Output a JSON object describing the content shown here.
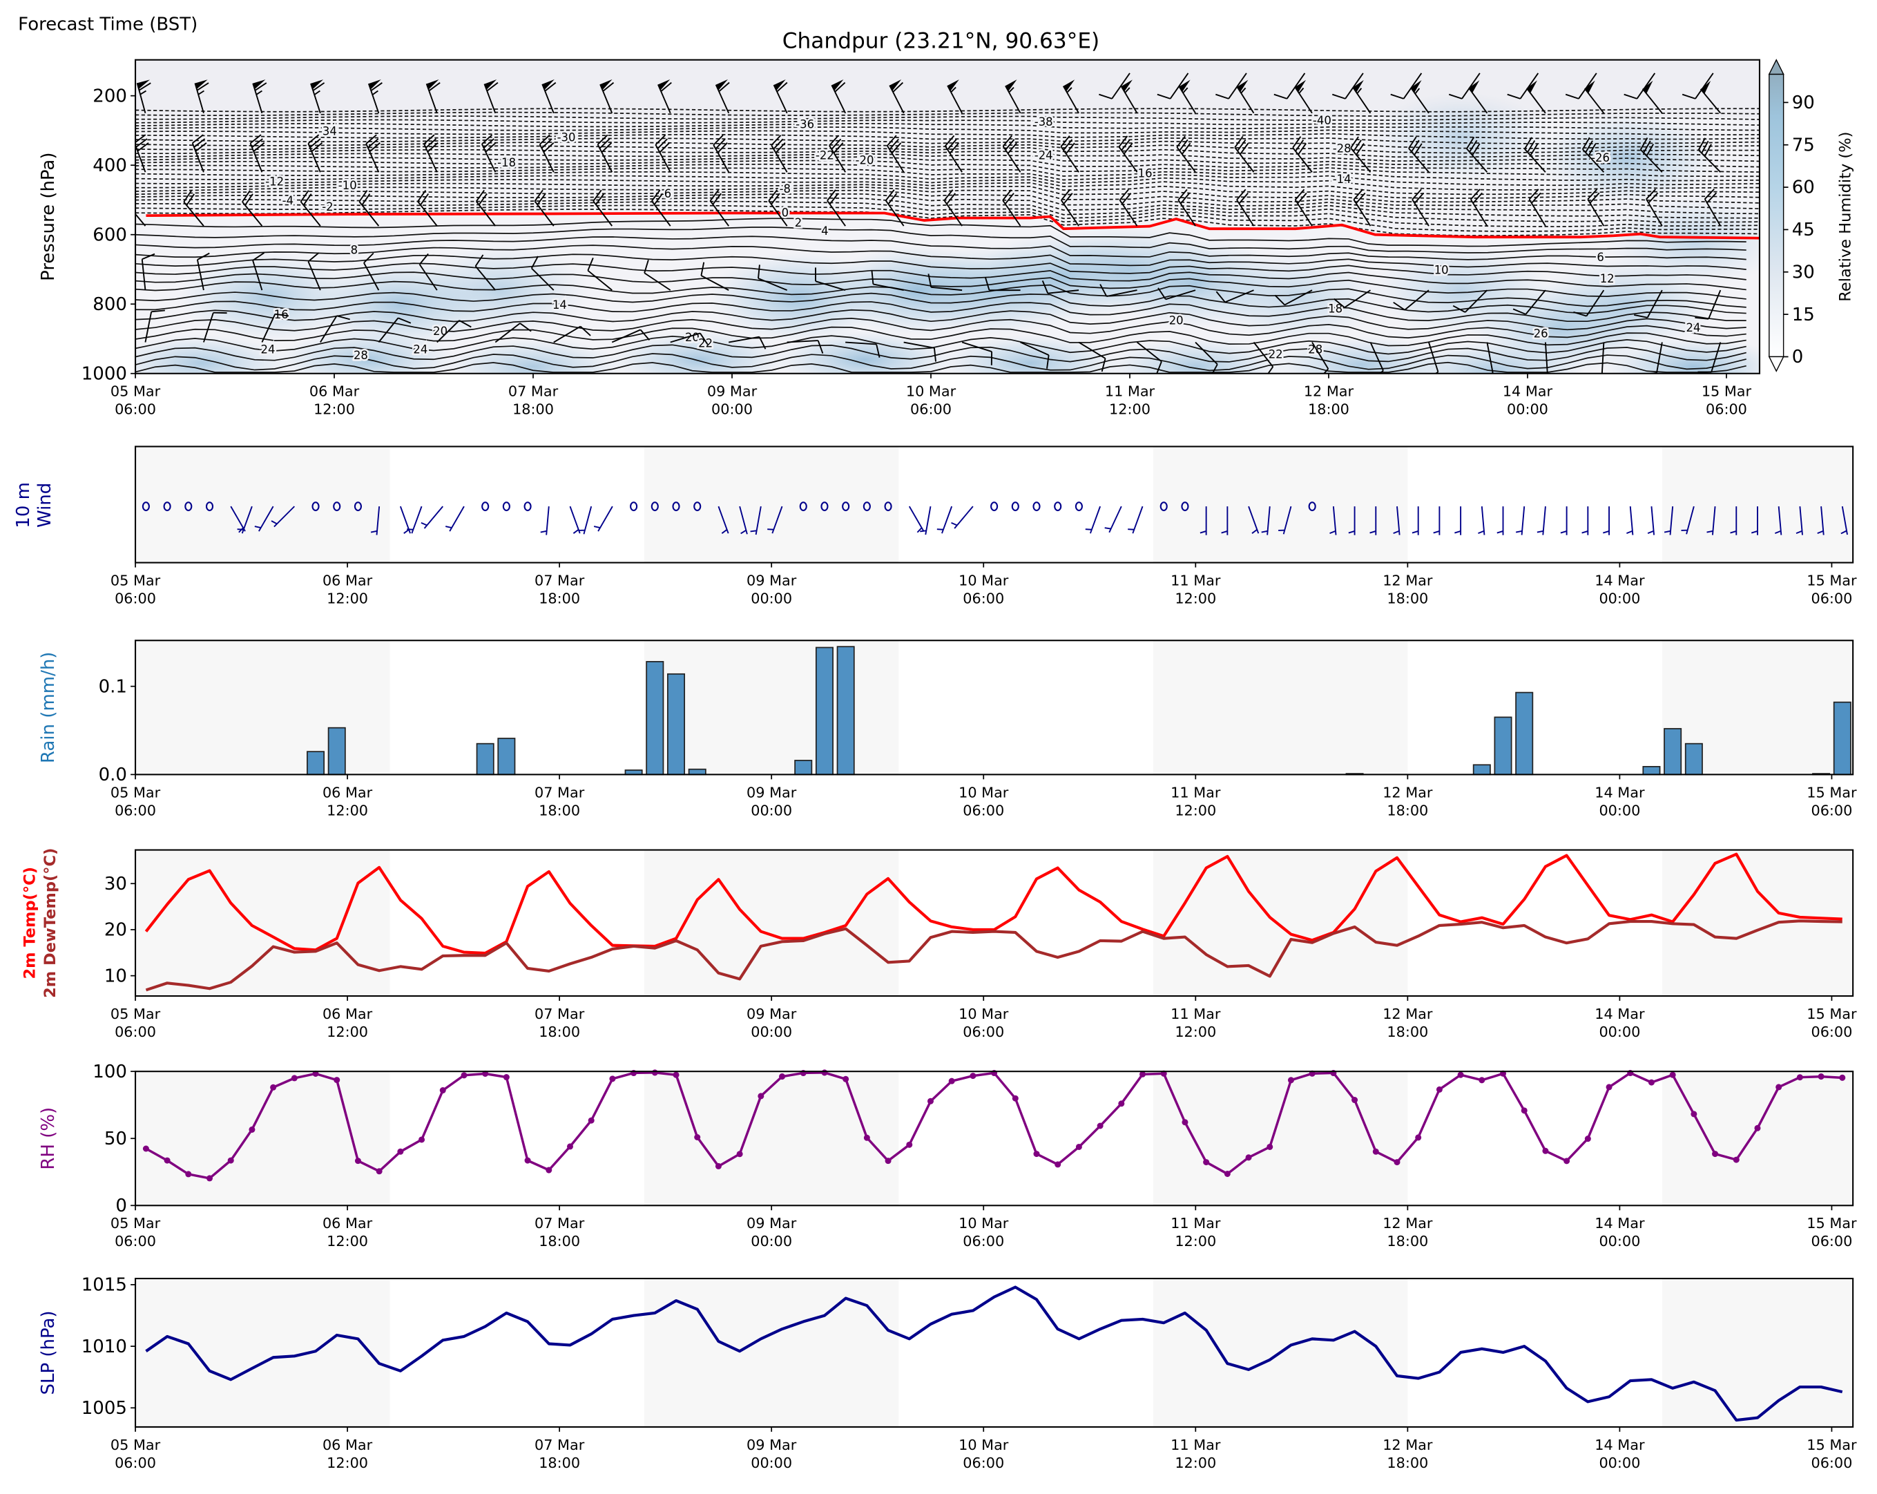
{
  "header": {
    "forecast_time_label": "Forecast Time (BST)",
    "title": "Chandpur (23.21°N, 90.63°E)"
  },
  "time_axis": {
    "first_point_hour": 1.5,
    "step_hours": 3,
    "ticks": [
      {
        "date": "05 Mar",
        "time": "06:00"
      },
      {
        "date": "06 Mar",
        "time": "12:00"
      },
      {
        "date": "07 Mar",
        "time": "18:00"
      },
      {
        "date": "09 Mar",
        "time": "00:00"
      },
      {
        "date": "10 Mar",
        "time": "06:00"
      },
      {
        "date": "11 Mar",
        "time": "12:00"
      },
      {
        "date": "12 Mar",
        "time": "18:00"
      },
      {
        "date": "14 Mar",
        "time": "00:00"
      },
      {
        "date": "15 Mar",
        "time": "06:00"
      }
    ],
    "tick_step_hours": 30,
    "shaded_bands_hours": [
      [
        0,
        36
      ],
      [
        72,
        108
      ],
      [
        144,
        180
      ],
      [
        216,
        243
      ]
    ]
  },
  "chart_data": [
    {
      "type": "contour",
      "name": "vertical-cross-section",
      "ylabel": "Pressure (hPa)",
      "ylim": [
        1000,
        100
      ],
      "xlim_hours": [
        0,
        245
      ],
      "yticks": [
        200,
        400,
        600,
        800,
        1000
      ],
      "ytick_labels": [
        "200",
        "400",
        "600",
        "800",
        "1000"
      ],
      "freezing_level": {
        "color": "#ff0000",
        "hours": [
          1.6,
          34,
          61,
          88,
          113,
          119,
          124,
          135,
          138,
          140,
          153,
          157,
          162,
          175,
          182,
          187,
          202,
          218,
          223,
          227,
          230,
          245
        ],
        "pressure": [
          545,
          541,
          540,
          538,
          538,
          559,
          552,
          552,
          548,
          583,
          576,
          555,
          583,
          583,
          572,
          600,
          607,
          607,
          603,
          598,
          607,
          610
        ]
      },
      "contour_labels": [
        {
          "value": "-34",
          "hour": 29,
          "pressure": 303
        },
        {
          "value": "-30",
          "hour": 65,
          "pressure": 321
        },
        {
          "value": "-18",
          "hour": 56,
          "pressure": 393
        },
        {
          "value": "-36",
          "hour": 101,
          "pressure": 283
        },
        {
          "value": "-22",
          "hour": 104,
          "pressure": 372
        },
        {
          "value": "-20",
          "hour": 110,
          "pressure": 386
        },
        {
          "value": "-38",
          "hour": 137,
          "pressure": 276
        },
        {
          "value": "-24",
          "hour": 137,
          "pressure": 372
        },
        {
          "value": "-40",
          "hour": 179,
          "pressure": 272
        },
        {
          "value": "-28",
          "hour": 182,
          "pressure": 352
        },
        {
          "value": "-26",
          "hour": 221,
          "pressure": 379
        },
        {
          "value": "-16",
          "hour": 152,
          "pressure": 424
        },
        {
          "value": "-14",
          "hour": 182,
          "pressure": 441
        },
        {
          "value": "-12",
          "hour": 21,
          "pressure": 448
        },
        {
          "value": "-10",
          "hour": 32,
          "pressure": 459
        },
        {
          "value": "-8",
          "hour": 98,
          "pressure": 469
        },
        {
          "value": "-6",
          "hour": 80,
          "pressure": 483
        },
        {
          "value": "-4",
          "hour": 23,
          "pressure": 503
        },
        {
          "value": "-2",
          "hour": 29,
          "pressure": 521
        },
        {
          "value": "0",
          "hour": 98,
          "pressure": 538
        },
        {
          "value": "2",
          "hour": 100,
          "pressure": 566
        },
        {
          "value": "4",
          "hour": 104,
          "pressure": 590
        },
        {
          "value": "8",
          "hour": 33,
          "pressure": 645
        },
        {
          "value": "6",
          "hour": 221,
          "pressure": 666
        },
        {
          "value": "10",
          "hour": 197,
          "pressure": 703
        },
        {
          "value": "12",
          "hour": 222,
          "pressure": 728
        },
        {
          "value": "14",
          "hour": 64,
          "pressure": 803
        },
        {
          "value": "16",
          "hour": 22,
          "pressure": 831
        },
        {
          "value": "18",
          "hour": 181,
          "pressure": 814
        },
        {
          "value": "20",
          "hour": 46,
          "pressure": 879
        },
        {
          "value": "20",
          "hour": 84,
          "pressure": 897
        },
        {
          "value": "20",
          "hour": 157,
          "pressure": 848
        },
        {
          "value": "22",
          "hour": 86,
          "pressure": 914
        },
        {
          "value": "22",
          "hour": 172,
          "pressure": 945
        },
        {
          "value": "24",
          "hour": 20,
          "pressure": 931
        },
        {
          "value": "24",
          "hour": 43,
          "pressure": 931
        },
        {
          "value": "24",
          "hour": 235,
          "pressure": 869
        },
        {
          "value": "26",
          "hour": 212,
          "pressure": 886
        },
        {
          "value": "28",
          "hour": 34,
          "pressure": 948
        },
        {
          "value": "28",
          "hour": 178,
          "pressure": 931
        }
      ],
      "rh_maxima": [
        [
          20,
          780,
          55
        ],
        [
          40,
          800,
          60
        ],
        [
          55,
          760,
          45
        ],
        [
          100,
          780,
          65
        ],
        [
          118,
          760,
          70
        ],
        [
          130,
          760,
          60
        ],
        [
          140,
          720,
          55
        ],
        [
          150,
          700,
          50
        ],
        [
          160,
          740,
          55
        ],
        [
          175,
          780,
          40
        ],
        [
          200,
          760,
          45
        ],
        [
          215,
          870,
          55
        ],
        [
          225,
          800,
          50
        ],
        [
          225,
          380,
          55
        ],
        [
          200,
          320,
          40
        ],
        [
          10,
          970,
          55
        ],
        [
          35,
          960,
          60
        ],
        [
          60,
          980,
          55
        ],
        [
          85,
          960,
          60
        ],
        [
          110,
          960,
          65
        ],
        [
          135,
          970,
          60
        ],
        [
          160,
          980,
          55
        ],
        [
          185,
          975,
          55
        ],
        [
          205,
          990,
          55
        ],
        [
          235,
          980,
          65
        ],
        [
          235,
          620,
          40
        ]
      ],
      "colorbar": {
        "label": "Relative Humidity (%)",
        "range": [
          0,
          100
        ],
        "ticks": [
          0,
          15,
          30,
          45,
          60,
          75,
          90
        ],
        "tick_labels": [
          "0",
          "15",
          "30",
          "45",
          "60",
          "75",
          "90"
        ]
      },
      "upper_wind": {
        "step_hours": 8.8,
        "levels": [
          {
            "pressure": 250,
            "from_hour": 1.5,
            "dir_start": 345,
            "dir_end": 320,
            "speed_start": 65,
            "speed_end": 50
          },
          {
            "pressure": 135,
            "from_hour": 150,
            "dir_start": 215,
            "dir_end": 215,
            "speed_start": 10,
            "speed_end": 10
          },
          {
            "pressure": 420,
            "from_hour": 1.5,
            "dir_start": 340,
            "dir_end": 315,
            "speed_start": 30,
            "speed_end": 30
          },
          {
            "pressure": 575,
            "from_hour": 1.5,
            "dir_start": 320,
            "dir_end": 330,
            "speed_start": 20,
            "speed_end": 20
          },
          {
            "pressure": 760,
            "from_hour": 1.5,
            "dir_start": 355,
            "dir_end": 200,
            "speed_start": 10,
            "speed_end": 10
          },
          {
            "pressure": 910,
            "from_hour": 1.5,
            "dir_start": 10,
            "dir_end": 200,
            "speed_start": 10,
            "speed_end": 10
          }
        ]
      }
    },
    {
      "type": "barbs",
      "name": "wind-10m",
      "ylabel_line1": "10 m",
      "ylabel_line2": "Wind",
      "color": "#00008b",
      "speed_kt": [
        0,
        0,
        0,
        0,
        5,
        5,
        5,
        5,
        0,
        0,
        0,
        5,
        5,
        5,
        5,
        5,
        0,
        0,
        0,
        5,
        5,
        5,
        5,
        0,
        0,
        0,
        0,
        5,
        5,
        5,
        5,
        0,
        0,
        0,
        0,
        0,
        5,
        5,
        5,
        5,
        0,
        0,
        0,
        0,
        0,
        5,
        5,
        5,
        0,
        0,
        5,
        5,
        5,
        5,
        5,
        0,
        5,
        5,
        5,
        5,
        5,
        5,
        5,
        5,
        5,
        5,
        5,
        5,
        5,
        5,
        5,
        5,
        5,
        5,
        5,
        5,
        5,
        5,
        5,
        5,
        5
      ],
      "dir_deg": [
        0,
        0,
        0,
        0,
        150,
        200,
        210,
        225,
        0,
        0,
        0,
        185,
        160,
        200,
        220,
        210,
        0,
        0,
        0,
        185,
        160,
        195,
        210,
        0,
        0,
        0,
        0,
        160,
        165,
        190,
        200,
        0,
        0,
        0,
        0,
        0,
        150,
        190,
        200,
        220,
        0,
        0,
        0,
        0,
        0,
        200,
        205,
        200,
        0,
        0,
        180,
        180,
        160,
        185,
        195,
        0,
        175,
        180,
        180,
        175,
        180,
        180,
        180,
        175,
        180,
        185,
        185,
        180,
        180,
        180,
        175,
        175,
        185,
        195,
        185,
        180,
        180,
        175,
        175,
        175,
        170
      ]
    },
    {
      "type": "bar",
      "name": "rain",
      "ylabel": "Rain (mm/h)",
      "label_color": "#1f77b4",
      "bar_color": "#3d85bd",
      "ylim": [
        0,
        0.152
      ],
      "yticks": [
        0,
        0.1
      ],
      "ytick_labels": [
        "0.0",
        "0.1"
      ],
      "values": [
        0,
        0,
        0,
        0,
        0,
        0,
        0,
        0,
        0.026,
        0.053,
        0,
        0,
        0,
        0,
        0,
        0,
        0.035,
        0.041,
        0,
        0,
        0,
        0,
        0,
        0.005,
        0.128,
        0.114,
        0.006,
        0,
        0,
        0,
        0,
        0.016,
        0.144,
        0.145,
        0,
        0,
        0,
        0,
        0,
        0,
        0,
        0,
        0,
        0,
        0,
        0,
        0,
        0,
        0,
        0,
        0,
        0,
        0,
        0,
        0,
        0,
        0,
        0.001,
        0,
        0,
        0,
        0,
        0,
        0.011,
        0.065,
        0.093,
        0,
        0,
        0,
        0,
        0,
        0.009,
        0.052,
        0.035,
        0,
        0,
        0,
        0,
        0,
        0.001,
        0.082
      ]
    },
    {
      "type": "line",
      "name": "temperature",
      "ylim": [
        5.6,
        37.3
      ],
      "yticks": [
        10,
        20,
        30
      ],
      "ytick_labels": [
        "10",
        "20",
        "30"
      ],
      "series": [
        {
          "name": "2m Temp(°C)",
          "color": "#ff0000",
          "values": [
            19.6,
            25.5,
            30.9,
            32.8,
            25.8,
            20.9,
            18.4,
            15.9,
            15.6,
            18.1,
            30.1,
            33.5,
            26.4,
            22.4,
            16.4,
            15.1,
            14.9,
            17.4,
            29.4,
            32.6,
            25.7,
            20.9,
            16.6,
            16.5,
            16.4,
            18.1,
            26.5,
            30.9,
            24.4,
            19.6,
            18.1,
            18.1,
            19.4,
            20.9,
            27.7,
            31.1,
            26.0,
            21.9,
            20.6,
            20.0,
            20.0,
            22.8,
            31.0,
            33.4,
            28.6,
            26.0,
            21.8,
            20.1,
            18.6,
            25.8,
            33.4,
            35.9,
            28.3,
            22.7,
            19.0,
            17.7,
            19.4,
            24.5,
            32.7,
            35.6,
            29.4,
            23.2,
            21.7,
            22.6,
            21.2,
            26.6,
            33.7,
            36.1,
            29.6,
            23.1,
            22.2,
            23.2,
            21.7,
            27.6,
            34.4,
            36.4,
            28.3,
            23.6,
            22.7,
            22.5,
            22.3
          ]
        },
        {
          "name": "2m DewTemp(°C)",
          "color": "#a52a2a",
          "values": [
            6.9,
            8.4,
            7.9,
            7.2,
            8.6,
            12.1,
            16.3,
            15.1,
            15.3,
            17.1,
            12.4,
            11.1,
            12.0,
            11.4,
            14.3,
            14.4,
            14.4,
            17.1,
            11.6,
            11.0,
            12.6,
            14.0,
            15.8,
            16.4,
            16.0,
            17.6,
            15.6,
            10.6,
            9.3,
            16.4,
            17.4,
            17.6,
            19.1,
            20.2,
            16.6,
            12.9,
            13.2,
            18.3,
            19.6,
            19.4,
            19.6,
            19.4,
            15.3,
            14.0,
            15.3,
            17.6,
            17.5,
            19.6,
            18.1,
            18.4,
            14.6,
            12.0,
            12.2,
            9.9,
            17.9,
            17.2,
            19.2,
            20.6,
            17.3,
            16.6,
            18.6,
            20.9,
            21.2,
            21.6,
            20.4,
            20.9,
            18.4,
            17.1,
            18.0,
            21.3,
            21.8,
            21.8,
            21.3,
            21.1,
            18.4,
            18.1,
            19.9,
            21.6,
            21.9,
            21.8,
            21.7
          ]
        }
      ]
    },
    {
      "type": "line",
      "name": "relative-humidity",
      "ylabel": "RH (%)",
      "color": "#800080",
      "ylim": [
        0,
        100
      ],
      "yticks": [
        0,
        50,
        100
      ],
      "ytick_labels": [
        "0",
        "50",
        "100"
      ],
      "values": [
        42.4,
        33.6,
        23.4,
        20.3,
        33.6,
        56.6,
        88.1,
        95,
        98.3,
        93.6,
        33.3,
        25.5,
        40.2,
        49.1,
        85.9,
        97.1,
        98.3,
        95.7,
        33.6,
        26.4,
        44,
        63.4,
        94.5,
        98.8,
        99.1,
        97.4,
        50.9,
        29.3,
        38.4,
        81.6,
        96.2,
        98.8,
        99.1,
        94.3,
        50.5,
        33.3,
        45.3,
        77.8,
        92.8,
        96.7,
        98.8,
        79.9,
        38.5,
        30.6,
        43.7,
        59.4,
        76,
        97.9,
        98.4,
        62.1,
        32.3,
        23.6,
        35.8,
        43.7,
        93.5,
        98.4,
        98.8,
        78.7,
        40.2,
        32.3,
        50.7,
        86.5,
        97.4,
        93.5,
        98.4,
        70.8,
        40.7,
        33.2,
        49.8,
        88.3,
        98.8,
        91.8,
        97.4,
        68.2,
        38.5,
        34.1,
        57.7,
        88.3,
        95.6,
        96.2,
        95.3
      ]
    },
    {
      "type": "line",
      "name": "sea-level-pressure",
      "ylabel": "SLP (hPa)",
      "color": "#00008b",
      "ylim": [
        1003.45,
        1015.5
      ],
      "yticks": [
        1005,
        1010,
        1015
      ],
      "ytick_labels": [
        "1005",
        "1010",
        "1015"
      ],
      "values": [
        1009.6,
        1010.8,
        1010.2,
        1008.0,
        1007.3,
        1008.2,
        1009.1,
        1009.2,
        1009.6,
        1010.9,
        1010.6,
        1008.6,
        1008.0,
        1009.2,
        1010.5,
        1010.8,
        1011.6,
        1012.7,
        1012.0,
        1010.2,
        1010.1,
        1011.0,
        1012.2,
        1012.5,
        1012.7,
        1013.7,
        1013.0,
        1010.4,
        1009.6,
        1010.6,
        1011.4,
        1012.0,
        1012.5,
        1013.9,
        1013.3,
        1011.3,
        1010.6,
        1011.8,
        1012.6,
        1012.9,
        1014.0,
        1014.8,
        1013.8,
        1011.4,
        1010.6,
        1011.4,
        1012.1,
        1012.2,
        1011.9,
        1012.7,
        1011.3,
        1008.6,
        1008.1,
        1008.9,
        1010.1,
        1010.6,
        1010.5,
        1011.2,
        1010.0,
        1007.6,
        1007.4,
        1007.9,
        1009.5,
        1009.8,
        1009.5,
        1010.0,
        1008.8,
        1006.6,
        1005.5,
        1005.9,
        1007.2,
        1007.3,
        1006.6,
        1007.1,
        1006.4,
        1004.0,
        1004.2,
        1005.6,
        1006.7,
        1006.7,
        1006.3
      ]
    }
  ]
}
